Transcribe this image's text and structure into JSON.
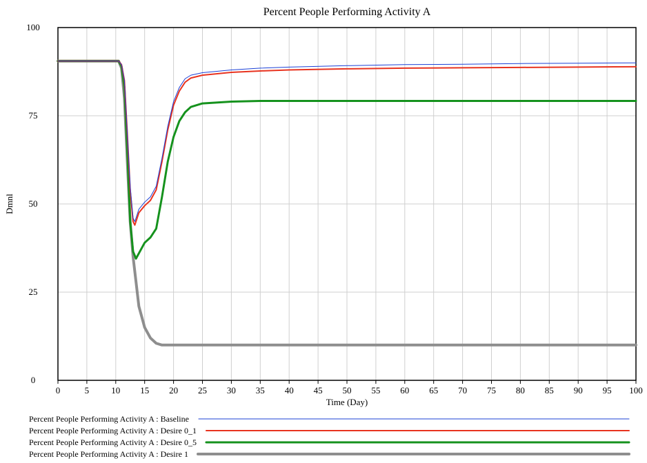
{
  "chart_data": {
    "type": "line",
    "title": "Percent People Performing Activity A",
    "xlabel": "Time (Day)",
    "ylabel": "Dmnl",
    "xlim": [
      0,
      100
    ],
    "ylim": [
      0,
      100
    ],
    "x_ticks": [
      "0",
      "5",
      "10",
      "15",
      "20",
      "25",
      "30",
      "35",
      "40",
      "45",
      "50",
      "55",
      "60",
      "65",
      "70",
      "75",
      "80",
      "85",
      "90",
      "95",
      "100"
    ],
    "y_ticks": [
      "0",
      "25",
      "50",
      "75",
      "100"
    ],
    "grid": true,
    "legend_position": "bottom",
    "series": [
      {
        "name": "Percent People Performing Activity A : Baseline",
        "color": "#1a3fd6",
        "line_width": 1,
        "points": [
          [
            0,
            90.5
          ],
          [
            10.5,
            90.5
          ],
          [
            11,
            89.5
          ],
          [
            11.5,
            85
          ],
          [
            12,
            70
          ],
          [
            12.5,
            55
          ],
          [
            13,
            46
          ],
          [
            13.3,
            45
          ],
          [
            14,
            48.5
          ],
          [
            15,
            50.5
          ],
          [
            16,
            52
          ],
          [
            17,
            55
          ],
          [
            18,
            63
          ],
          [
            19,
            72
          ],
          [
            20,
            79
          ],
          [
            21,
            83
          ],
          [
            22,
            85.5
          ],
          [
            23,
            86.5
          ],
          [
            25,
            87.2
          ],
          [
            30,
            88
          ],
          [
            35,
            88.5
          ],
          [
            40,
            88.8
          ],
          [
            50,
            89.2
          ],
          [
            60,
            89.5
          ],
          [
            70,
            89.6
          ],
          [
            80,
            89.8
          ],
          [
            90,
            89.9
          ],
          [
            100,
            90
          ]
        ]
      },
      {
        "name": "Percent People Performing Activity A : Desire 0_1",
        "color": "#e8321e",
        "line_width": 2,
        "points": [
          [
            0,
            90.5
          ],
          [
            10.5,
            90.5
          ],
          [
            11,
            89.5
          ],
          [
            11.5,
            85
          ],
          [
            12,
            70
          ],
          [
            12.5,
            54
          ],
          [
            13,
            45
          ],
          [
            13.3,
            44
          ],
          [
            14,
            47.5
          ],
          [
            15,
            49.5
          ],
          [
            16,
            51
          ],
          [
            17,
            54
          ],
          [
            18,
            62
          ],
          [
            19,
            71
          ],
          [
            20,
            78
          ],
          [
            21,
            82
          ],
          [
            22,
            84.5
          ],
          [
            23,
            85.7
          ],
          [
            25,
            86.5
          ],
          [
            30,
            87.3
          ],
          [
            35,
            87.7
          ],
          [
            40,
            88
          ],
          [
            50,
            88.3
          ],
          [
            60,
            88.5
          ],
          [
            70,
            88.6
          ],
          [
            80,
            88.7
          ],
          [
            90,
            88.8
          ],
          [
            100,
            88.9
          ]
        ]
      },
      {
        "name": "Percent People Performing Activity A : Desire 0_5",
        "color": "#15921d",
        "line_width": 3,
        "points": [
          [
            0,
            90.5
          ],
          [
            10.5,
            90.5
          ],
          [
            11,
            89
          ],
          [
            11.5,
            83
          ],
          [
            12,
            65
          ],
          [
            12.5,
            45
          ],
          [
            13,
            36.5
          ],
          [
            13.5,
            34.5
          ],
          [
            14,
            36
          ],
          [
            15,
            39
          ],
          [
            16,
            40.5
          ],
          [
            17,
            43
          ],
          [
            18,
            52
          ],
          [
            19,
            62
          ],
          [
            20,
            69
          ],
          [
            21,
            73.5
          ],
          [
            22,
            76
          ],
          [
            23,
            77.5
          ],
          [
            25,
            78.5
          ],
          [
            30,
            79
          ],
          [
            35,
            79.2
          ],
          [
            50,
            79.2
          ],
          [
            100,
            79.2
          ]
        ]
      },
      {
        "name": "Percent People Performing Activity A : Desire 1",
        "color": "#8e8e8e",
        "line_width": 4,
        "points": [
          [
            0,
            90.5
          ],
          [
            10.5,
            90.5
          ],
          [
            11,
            88.5
          ],
          [
            11.5,
            80
          ],
          [
            12,
            62
          ],
          [
            12.5,
            45
          ],
          [
            13,
            35
          ],
          [
            13.5,
            28
          ],
          [
            14,
            21
          ],
          [
            15,
            15
          ],
          [
            16,
            12
          ],
          [
            17,
            10.5
          ],
          [
            18,
            10
          ],
          [
            100,
            10
          ]
        ]
      }
    ]
  }
}
